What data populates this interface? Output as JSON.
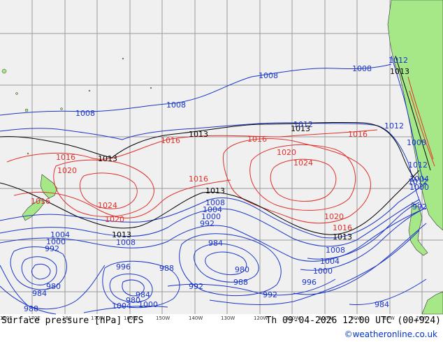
{
  "title": "Surface pressure [hPa] CFS",
  "valid_time": "Th 09-04-2026 12:00 UTC (00+924)",
  "credit": "©weatheronline.co.uk",
  "longitude_labels": [
    "160E",
    "170E",
    "180",
    "170W",
    "160W",
    "150W",
    "140W",
    "130W",
    "120W",
    "110W",
    "100W",
    "90W",
    "80W",
    "70W"
  ],
  "colors": {
    "ocean": "#f0f0f0",
    "land": "#a6e887",
    "grid": "#9a9a9a",
    "low": "#1a35c8",
    "high": "#e0302a",
    "standard": "#000000"
  },
  "isobar_labels": {
    "blue": [
      "1008",
      "1008",
      "1008",
      "1008",
      "1012",
      "1012",
      "1012",
      "1012",
      "1008",
      "1012",
      "1008",
      "1004",
      "1000",
      "992",
      "984",
      "980",
      "980",
      "984",
      "996",
      "988",
      "992",
      "984",
      "980",
      "988",
      "992",
      "996",
      "1004",
      "1000",
      "1008",
      "1004",
      "1000",
      "992",
      "984",
      "1004",
      "1000",
      "1008",
      "1004",
      "1000",
      "992",
      "988"
    ],
    "red": [
      "1016",
      "1020",
      "1016",
      "1024",
      "1020",
      "1016",
      "1016",
      "1016",
      "1020",
      "1024",
      "1020",
      "1016",
      "1016"
    ],
    "black": [
      "1013",
      "1013",
      "1013",
      "1013",
      "1013",
      "1013",
      "1013"
    ]
  }
}
